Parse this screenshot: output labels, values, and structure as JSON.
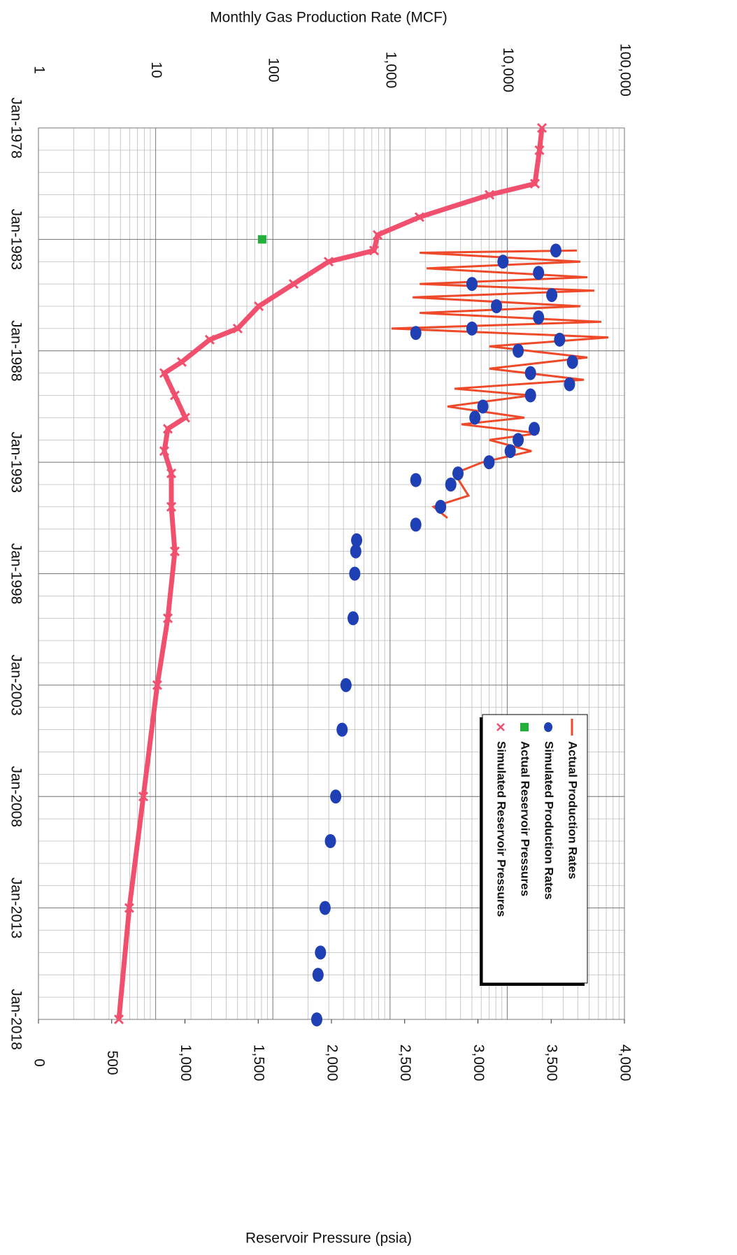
{
  "chart_data": {
    "type": "rotated-combo",
    "title": "Monthly Gas Production Rate (MCF)",
    "y2_label": "Reservoir Pressure (psia)",
    "xlim": [
      1978,
      2018
    ],
    "xticks": [
      {
        "value": 1978,
        "label": "Jan-1978"
      },
      {
        "value": 1983,
        "label": "Jan-1983"
      },
      {
        "value": 1988,
        "label": "Jan-1988"
      },
      {
        "value": 1993,
        "label": "Jan-1993"
      },
      {
        "value": 1998,
        "label": "Jan-1998"
      },
      {
        "value": 2003,
        "label": "Jan-2003"
      },
      {
        "value": 2008,
        "label": "Jan-2008"
      },
      {
        "value": 2013,
        "label": "Jan-2013"
      },
      {
        "value": 2018,
        "label": "Jan-2018"
      }
    ],
    "ylim": [
      1,
      100000
    ],
    "log_y": true,
    "yticks": [
      1,
      10,
      100,
      {
        "value": 1000,
        "label": "1,000"
      },
      {
        "value": 10000,
        "label": "10,000"
      },
      {
        "value": 100000,
        "label": "100,000"
      }
    ],
    "y2lim": [
      0,
      4000
    ],
    "y2ticks": [
      0,
      500,
      {
        "value": 1000,
        "label": "1,000"
      },
      {
        "value": 1500,
        "label": "1,500"
      },
      {
        "value": 2000,
        "label": "2,000"
      },
      {
        "value": 2500,
        "label": "2,500"
      },
      {
        "value": 3000,
        "label": "3,000"
      },
      {
        "value": 3500,
        "label": "3,500"
      },
      {
        "value": 4000,
        "label": "4,000"
      }
    ],
    "grid": true,
    "legend": "lower right",
    "series": [
      {
        "name": "Actual Production Rates",
        "color": "#ee4a2a",
        "mode": "line",
        "x": [
          1983.5,
          1983.6,
          1984,
          1984.3,
          1984.7,
          1985,
          1985.3,
          1985.6,
          1986,
          1986.3,
          1986.7,
          1987,
          1987.4,
          1987.8,
          1988.3,
          1988.8,
          1989.3,
          1989.7,
          1990,
          1990.5,
          1991,
          1991.3,
          1991.7,
          1992,
          1992.5,
          1993,
          1993.5,
          1994.5,
          1995,
          1995.5
        ],
        "values": [
          39300,
          1790,
          42100,
          2050,
          48300,
          1790,
          55400,
          1560,
          42100,
          1790,
          63500,
          1030,
          72900,
          7050,
          48300,
          7050,
          45100,
          3550,
          16100,
          3090,
          14000,
          4070,
          18500,
          7050,
          16100,
          6150,
          3550,
          4670,
          2350,
          3090
        ]
      },
      {
        "name": "Simulated Production Rates",
        "color": "#1f3fb5",
        "mode": "markers",
        "marker": "circle",
        "x": [
          1983.5,
          1984,
          1984.5,
          1985,
          1985.5,
          1986,
          1986.5,
          1987,
          1987.2,
          1987.5,
          1988,
          1988.5,
          1989,
          1989.5,
          1990,
          1990.5,
          1991,
          1991.5,
          1992,
          1992.5,
          1993,
          1993.5,
          1993.8,
          1994,
          1995,
          1995.8,
          1996.5,
          1997,
          1998,
          2000,
          2003,
          2005,
          2008,
          2010,
          2013,
          2015,
          2016,
          2018
        ],
        "values": [
          26000,
          9200,
          18500,
          5000,
          24000,
          8100,
          18500,
          5000,
          1660,
          28000,
          12400,
          36000,
          15800,
          34000,
          15800,
          6200,
          5300,
          17000,
          12400,
          10600,
          7000,
          3800,
          1660,
          3300,
          2700,
          1660,
          519,
          510,
          500,
          484,
          421,
          390,
          344,
          310,
          279,
          255,
          243,
          237
        ]
      },
      {
        "name": "Actual Reservoir Pressures",
        "color": "#22b03a",
        "mode": "markers",
        "marker": "square",
        "axis": "y2",
        "x": [
          1983
        ],
        "values": [
          1527
        ]
      },
      {
        "name": "Simulated Reservoir Pressures",
        "color": "#f0506e",
        "mode": "markers",
        "marker": "x",
        "axis": "y2",
        "x": [
          1978,
          1979,
          1980.5,
          1981,
          1982,
          1982.8,
          1983.5,
          1984,
          1985,
          1986,
          1987,
          1987.5,
          1988.5,
          1989,
          1990,
          1991,
          1991.5,
          1992.5,
          1993.5,
          1995,
          1997,
          2000,
          2003,
          2008,
          2013,
          2018
        ],
        "values": [
          3437,
          3420,
          3389,
          3079,
          2601,
          2315,
          2291,
          1981,
          1742,
          1504,
          1360,
          1169,
          978,
          859,
          931,
          1002,
          883,
          859,
          907,
          907,
          931,
          883,
          811,
          716,
          620,
          549
        ]
      }
    ]
  }
}
